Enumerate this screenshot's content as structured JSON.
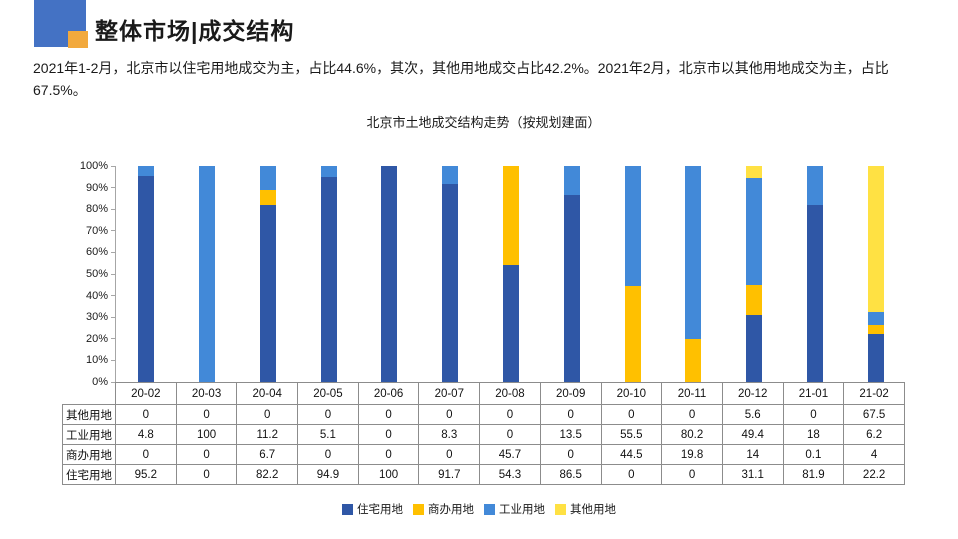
{
  "header": {
    "title": "整体市场|成交结构"
  },
  "brand": {
    "logo_blue": "#4472C4",
    "logo_orange": "#F2A93D"
  },
  "summary": "2021年1-2月，北京市以住宅用地成交为主，占比44.6%，其次，其他用地成交占比42.2%。2021年2月，北京市以其他用地成交为主，占比67.5%。",
  "chart_data": {
    "type": "bar",
    "stacked": true,
    "title": "北京市土地成交结构走势（按规划建面）",
    "categories": [
      "20-02",
      "20-03",
      "20-04",
      "20-05",
      "20-06",
      "20-07",
      "20-08",
      "20-09",
      "20-10",
      "20-11",
      "20-12",
      "21-01",
      "21-02"
    ],
    "series": [
      {
        "name": "住宅用地",
        "color": "#2F57A6",
        "values": [
          95.2,
          0,
          82.2,
          94.9,
          100,
          91.7,
          54.3,
          86.5,
          0,
          0,
          31.1,
          81.9,
          22.2
        ]
      },
      {
        "name": "商办用地",
        "color": "#FFC000",
        "values": [
          0,
          0,
          6.7,
          0,
          0,
          0,
          45.7,
          0,
          44.5,
          19.8,
          14,
          0.1,
          4
        ]
      },
      {
        "name": "工业用地",
        "color": "#4289D8",
        "values": [
          4.8,
          100,
          11.2,
          5.1,
          0,
          8.3,
          0,
          13.5,
          55.5,
          80.2,
          49.4,
          18,
          6.2
        ]
      },
      {
        "name": "其他用地",
        "color": "#FFE143",
        "values": [
          0,
          0,
          0,
          0,
          0,
          0,
          0,
          0,
          0,
          0,
          5.6,
          0,
          67.5
        ]
      }
    ],
    "table_row_order": [
      "其他用地",
      "工业用地",
      "商办用地",
      "住宅用地"
    ],
    "legend_order": [
      "住宅用地",
      "商办用地",
      "工业用地",
      "其他用地"
    ],
    "y_ticks": [
      "0%",
      "10%",
      "20%",
      "30%",
      "40%",
      "50%",
      "60%",
      "70%",
      "80%",
      "90%",
      "100%"
    ],
    "ylim": [
      0,
      100
    ],
    "grid": false,
    "legend_position": "bottom",
    "axis_color": "#A6A6A6",
    "table_border_color": "#8C8C8C"
  }
}
